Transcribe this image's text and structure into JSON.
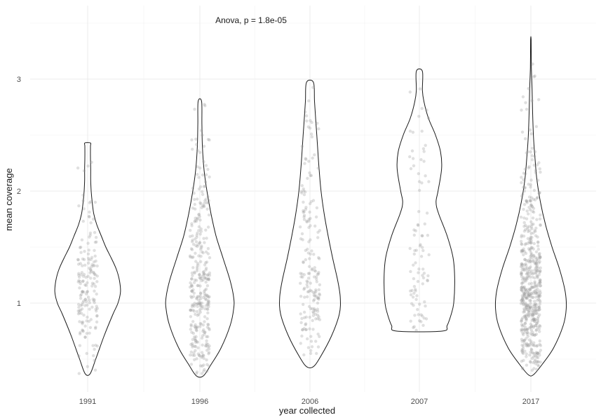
{
  "chart_data": {
    "type": "violin",
    "annotation": "Anova, p = 1.8e-05",
    "xlabel": "year collected",
    "ylabel": "mean coverage",
    "categories": [
      "1991",
      "1996",
      "2006",
      "2007",
      "2017"
    ],
    "y_ticks": [
      1,
      2,
      3
    ],
    "ylim": [
      0.25,
      3.5
    ],
    "grid": true,
    "point_color": "#999999",
    "violin_stroke": "#1a1a1a",
    "violins": [
      {
        "name": "1991",
        "min": 0.37,
        "max": 2.43,
        "points": 170,
        "profile": [
          [
            0.37,
            0.05
          ],
          [
            0.5,
            0.16
          ],
          [
            0.7,
            0.32
          ],
          [
            0.9,
            0.5
          ],
          [
            1.0,
            0.6
          ],
          [
            1.1,
            0.65
          ],
          [
            1.2,
            0.63
          ],
          [
            1.3,
            0.57
          ],
          [
            1.4,
            0.47
          ],
          [
            1.5,
            0.36
          ],
          [
            1.6,
            0.27
          ],
          [
            1.7,
            0.18
          ],
          [
            1.8,
            0.12
          ],
          [
            1.9,
            0.09
          ],
          [
            2.0,
            0.07
          ],
          [
            2.1,
            0.06
          ],
          [
            2.2,
            0.06
          ],
          [
            2.3,
            0.055
          ],
          [
            2.4,
            0.055
          ],
          [
            2.43,
            0.055
          ]
        ]
      },
      {
        "name": "1996",
        "min": 0.35,
        "max": 2.8,
        "points": 330,
        "profile": [
          [
            0.35,
            0.07
          ],
          [
            0.45,
            0.22
          ],
          [
            0.6,
            0.42
          ],
          [
            0.8,
            0.6
          ],
          [
            0.95,
            0.67
          ],
          [
            1.05,
            0.67
          ],
          [
            1.2,
            0.6
          ],
          [
            1.4,
            0.46
          ],
          [
            1.6,
            0.32
          ],
          [
            1.8,
            0.22
          ],
          [
            2.0,
            0.14
          ],
          [
            2.2,
            0.08
          ],
          [
            2.4,
            0.05
          ],
          [
            2.6,
            0.04
          ],
          [
            2.8,
            0.035
          ]
        ]
      },
      {
        "name": "2006",
        "min": 0.43,
        "max": 2.97,
        "points": 180,
        "profile": [
          [
            0.43,
            0.06
          ],
          [
            0.5,
            0.18
          ],
          [
            0.7,
            0.42
          ],
          [
            0.9,
            0.58
          ],
          [
            1.05,
            0.6
          ],
          [
            1.2,
            0.55
          ],
          [
            1.4,
            0.45
          ],
          [
            1.6,
            0.36
          ],
          [
            1.8,
            0.28
          ],
          [
            2.0,
            0.22
          ],
          [
            2.2,
            0.18
          ],
          [
            2.4,
            0.15
          ],
          [
            2.6,
            0.12
          ],
          [
            2.8,
            0.09
          ],
          [
            2.97,
            0.07
          ]
        ]
      },
      {
        "name": "2007",
        "min": 0.75,
        "max": 3.07,
        "points": 90,
        "profile": [
          [
            0.75,
            0.45
          ],
          [
            0.8,
            0.55
          ],
          [
            0.9,
            0.63
          ],
          [
            1.0,
            0.68
          ],
          [
            1.2,
            0.7
          ],
          [
            1.4,
            0.67
          ],
          [
            1.6,
            0.55
          ],
          [
            1.8,
            0.38
          ],
          [
            1.9,
            0.33
          ],
          [
            2.0,
            0.37
          ],
          [
            2.2,
            0.44
          ],
          [
            2.35,
            0.42
          ],
          [
            2.5,
            0.32
          ],
          [
            2.65,
            0.18
          ],
          [
            2.8,
            0.09
          ],
          [
            2.9,
            0.06
          ],
          [
            3.07,
            0.06
          ]
        ]
      },
      {
        "name": "2017",
        "min": 0.36,
        "max": 3.35,
        "points": 560,
        "profile": [
          [
            0.36,
            0.05
          ],
          [
            0.45,
            0.22
          ],
          [
            0.6,
            0.45
          ],
          [
            0.8,
            0.64
          ],
          [
            0.95,
            0.7
          ],
          [
            1.1,
            0.68
          ],
          [
            1.3,
            0.57
          ],
          [
            1.5,
            0.42
          ],
          [
            1.7,
            0.29
          ],
          [
            1.9,
            0.19
          ],
          [
            2.1,
            0.12
          ],
          [
            2.3,
            0.08
          ],
          [
            2.5,
            0.05
          ],
          [
            2.7,
            0.035
          ],
          [
            2.9,
            0.025
          ],
          [
            3.1,
            0.01
          ],
          [
            3.35,
            0.005
          ]
        ]
      }
    ]
  }
}
